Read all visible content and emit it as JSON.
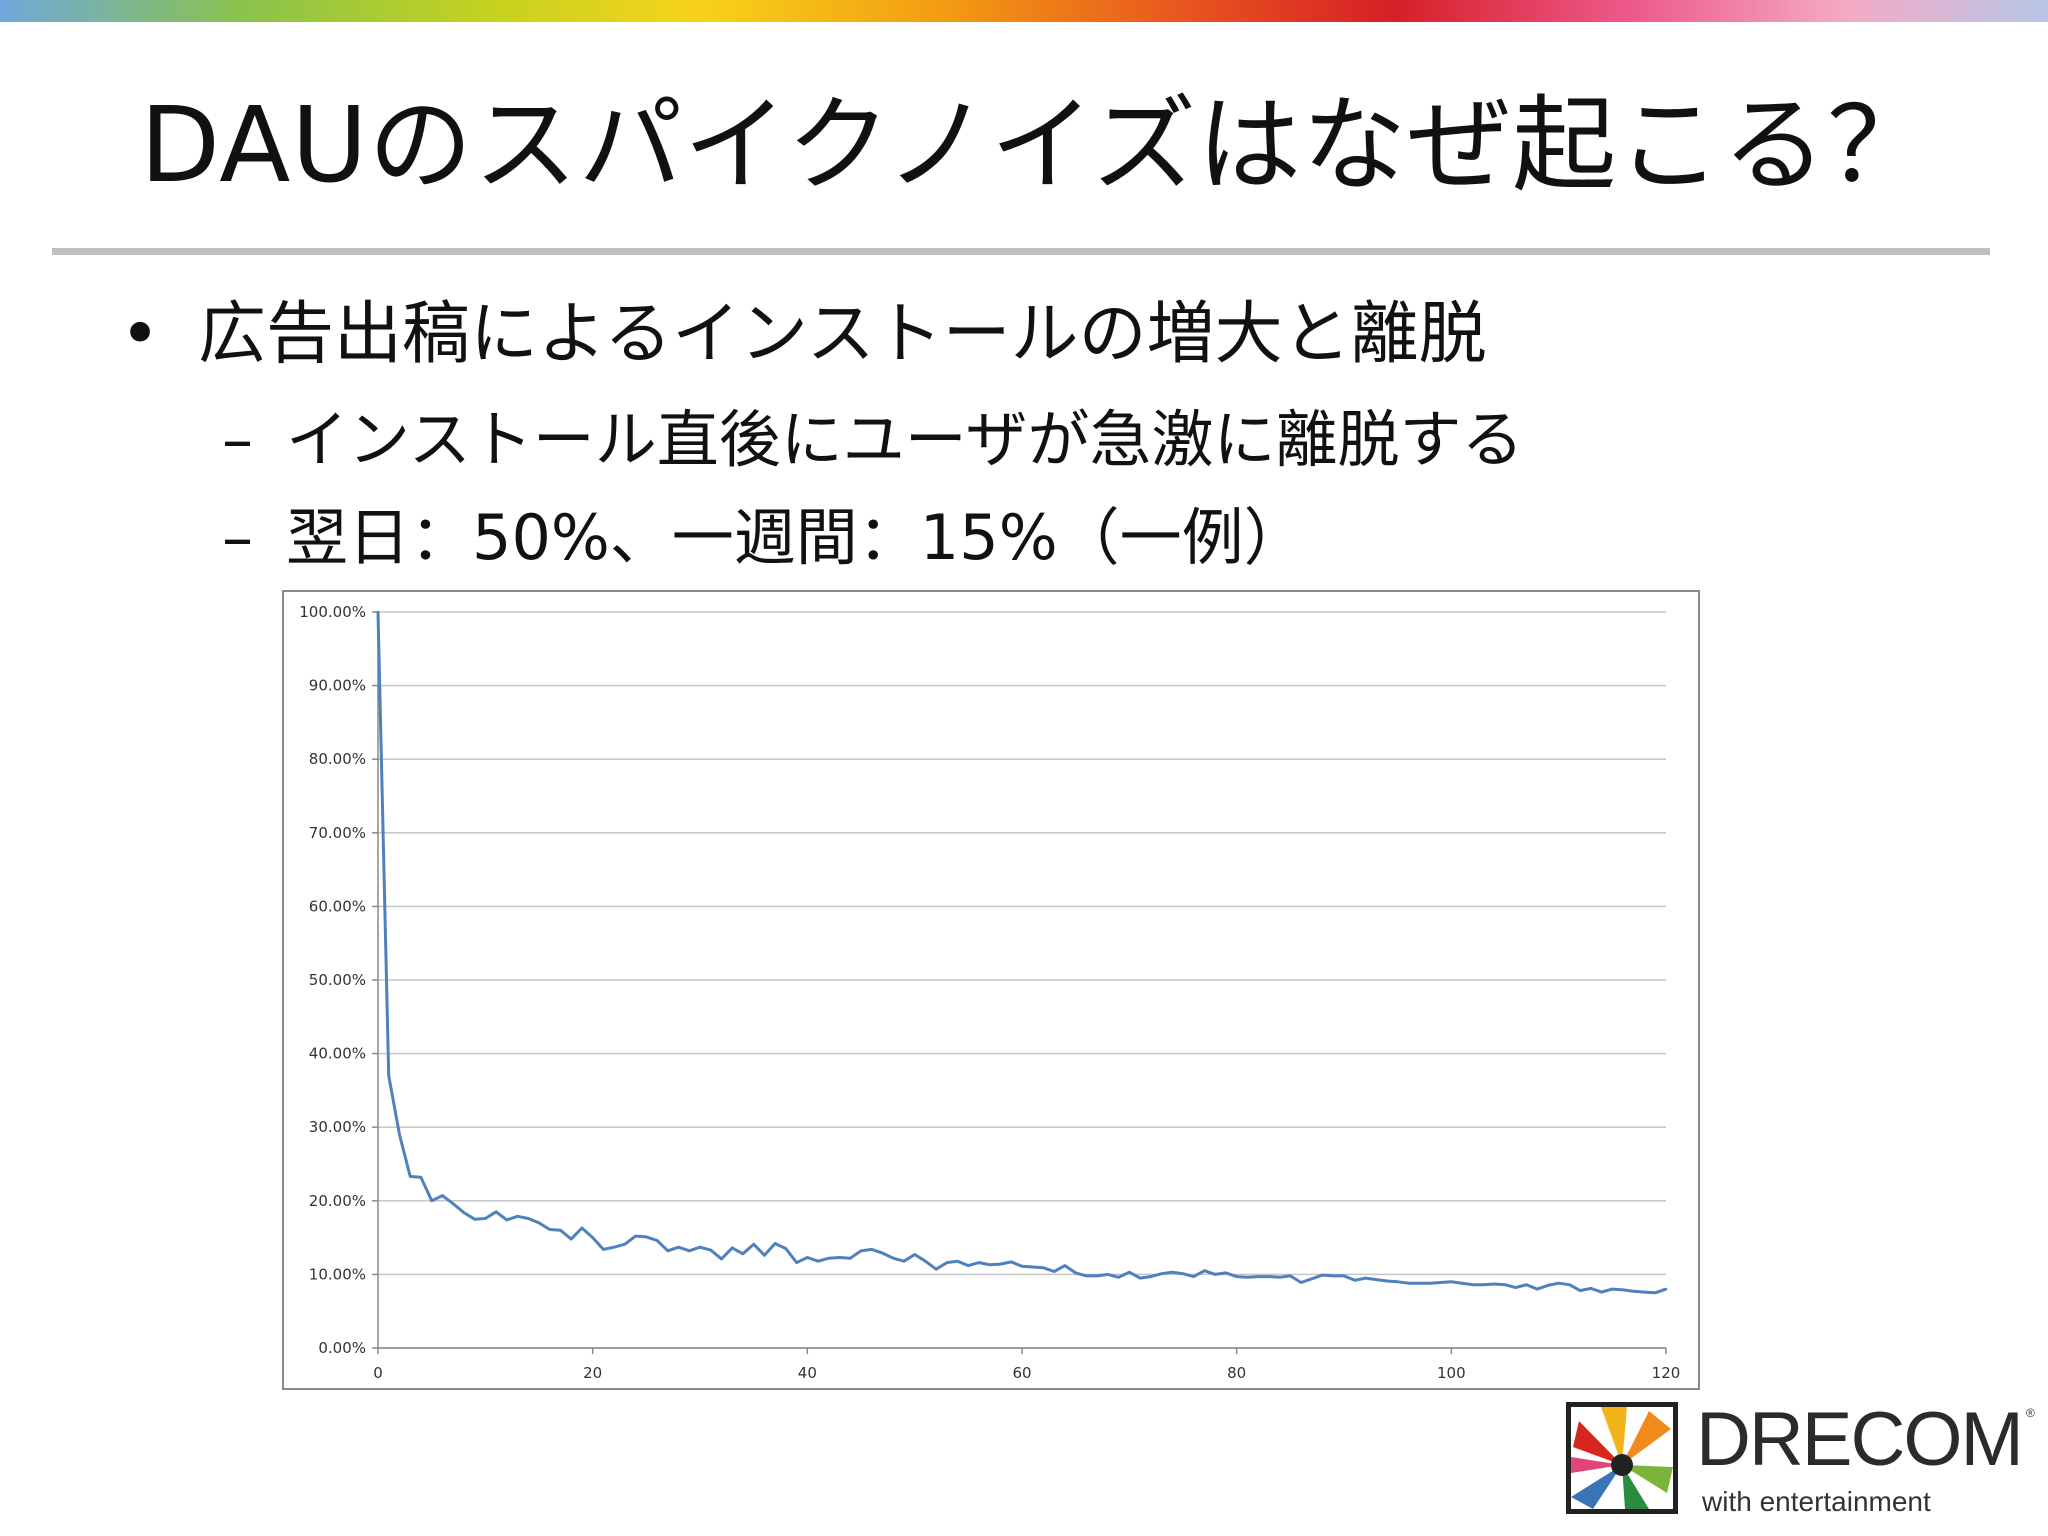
{
  "slide": {
    "title": "DAUのスパイクノイズはなぜ起こる？",
    "bullet_symbol": "•",
    "bullet": "広告出稿によるインストールの増大と離脱",
    "sub_dash": "–",
    "sub_items": [
      "インストール直後にユーザが急激に離脱する",
      "翌日：50%、一週間：15%（一例）"
    ]
  },
  "logo": {
    "wordmark": "DRECOM",
    "registered": "®",
    "tagline": "with entertainment"
  },
  "colors": {
    "series_line": "#4f81bd",
    "gridline": "#c6c6c6",
    "divider": "#bfbfbf"
  },
  "chart_data": {
    "type": "line",
    "title": "",
    "xlabel": "",
    "ylabel": "",
    "xlim": [
      0,
      120
    ],
    "ylim": [
      0,
      100
    ],
    "x_ticks": [
      0,
      20,
      40,
      60,
      80,
      100,
      120
    ],
    "y_ticks": [
      0,
      10,
      20,
      30,
      40,
      50,
      60,
      70,
      80,
      90,
      100
    ],
    "y_tick_labels": [
      "0.00%",
      "10.00%",
      "20.00%",
      "30.00%",
      "40.00%",
      "50.00%",
      "60.00%",
      "70.00%",
      "80.00%",
      "90.00%",
      "100.00%"
    ],
    "x_tick_labels": [
      "0",
      "20",
      "40",
      "60",
      "80",
      "100",
      "120"
    ],
    "grid": true,
    "legend": "none",
    "series": [
      {
        "x": [
          0,
          1,
          2,
          3,
          4,
          5,
          6,
          7,
          8,
          9,
          10,
          11,
          12,
          13,
          14,
          15,
          16,
          17,
          18,
          19,
          20,
          21,
          22,
          23,
          24,
          25,
          26,
          27,
          28,
          29,
          30,
          31,
          32,
          33,
          34,
          35,
          36,
          37,
          38,
          39,
          40,
          41,
          42,
          43,
          44,
          45,
          46,
          47,
          48,
          49,
          50,
          51,
          52,
          53,
          54,
          55,
          56,
          57,
          58,
          59,
          60,
          61,
          62,
          63,
          64,
          65,
          66,
          67,
          68,
          69,
          70,
          71,
          72,
          73,
          74,
          75,
          76,
          77,
          78,
          79,
          80,
          81,
          82,
          83,
          84,
          85,
          86,
          87,
          88,
          89,
          90,
          91,
          92,
          93,
          94,
          95,
          96,
          97,
          98,
          99,
          100,
          101,
          102,
          103,
          104,
          105,
          106,
          107,
          108,
          109,
          110,
          111,
          112,
          113,
          114,
          115,
          116,
          117,
          118,
          119,
          120
        ],
        "values": [
          100.0,
          37.0,
          29.0,
          23.3,
          23.2,
          20.0,
          20.7,
          19.6,
          18.4,
          17.5,
          17.6,
          18.5,
          17.4,
          17.9,
          17.6,
          17.0,
          16.1,
          16.0,
          14.8,
          16.3,
          15.0,
          13.4,
          13.7,
          14.1,
          15.2,
          15.1,
          14.6,
          13.2,
          13.7,
          13.2,
          13.7,
          13.3,
          12.1,
          13.6,
          12.8,
          14.1,
          12.6,
          14.2,
          13.5,
          11.6,
          12.3,
          11.8,
          12.2,
          12.3,
          12.2,
          13.2,
          13.4,
          12.9,
          12.2,
          11.8,
          12.7,
          11.8,
          10.7,
          11.6,
          11.8,
          11.2,
          11.6,
          11.3,
          11.4,
          11.7,
          11.1,
          11.0,
          10.9,
          10.4,
          11.2,
          10.2,
          9.8,
          9.8,
          10.0,
          9.6,
          10.3,
          9.5,
          9.7,
          10.1,
          10.3,
          10.1,
          9.7,
          10.5,
          10.0,
          10.2,
          9.7,
          9.6,
          9.7,
          9.7,
          9.6,
          9.8,
          8.9,
          9.4,
          9.9,
          9.8,
          9.8,
          9.2,
          9.5,
          9.3,
          9.1,
          9.0,
          8.8,
          8.8,
          8.8,
          8.9,
          9.0,
          8.8,
          8.6,
          8.6,
          8.7,
          8.6,
          8.2,
          8.6,
          8.0,
          8.5,
          8.8,
          8.6,
          7.8,
          8.1,
          7.6,
          8.0,
          7.9,
          7.7,
          7.6,
          7.5,
          8.0
        ]
      }
    ]
  }
}
